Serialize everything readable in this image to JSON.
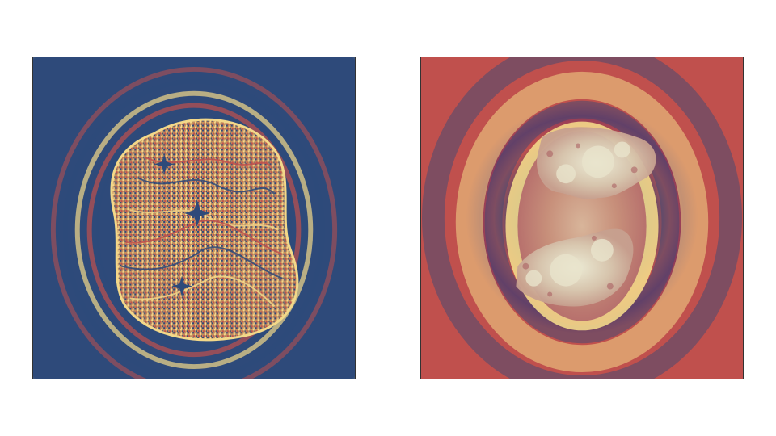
{
  "figure": {
    "panels": [
      {
        "id": "left",
        "subject": "fractal-escape-time-ring-pattern",
        "palette": [
          "#f6d88a",
          "#c0504d",
          "#2e4a7a"
        ]
      },
      {
        "id": "right",
        "subject": "fractal-julia-set-smooth-rings",
        "palette": [
          "#f6d88a",
          "#c0504d",
          "#2e4a7a",
          "#e8e4c8"
        ]
      }
    ]
  }
}
